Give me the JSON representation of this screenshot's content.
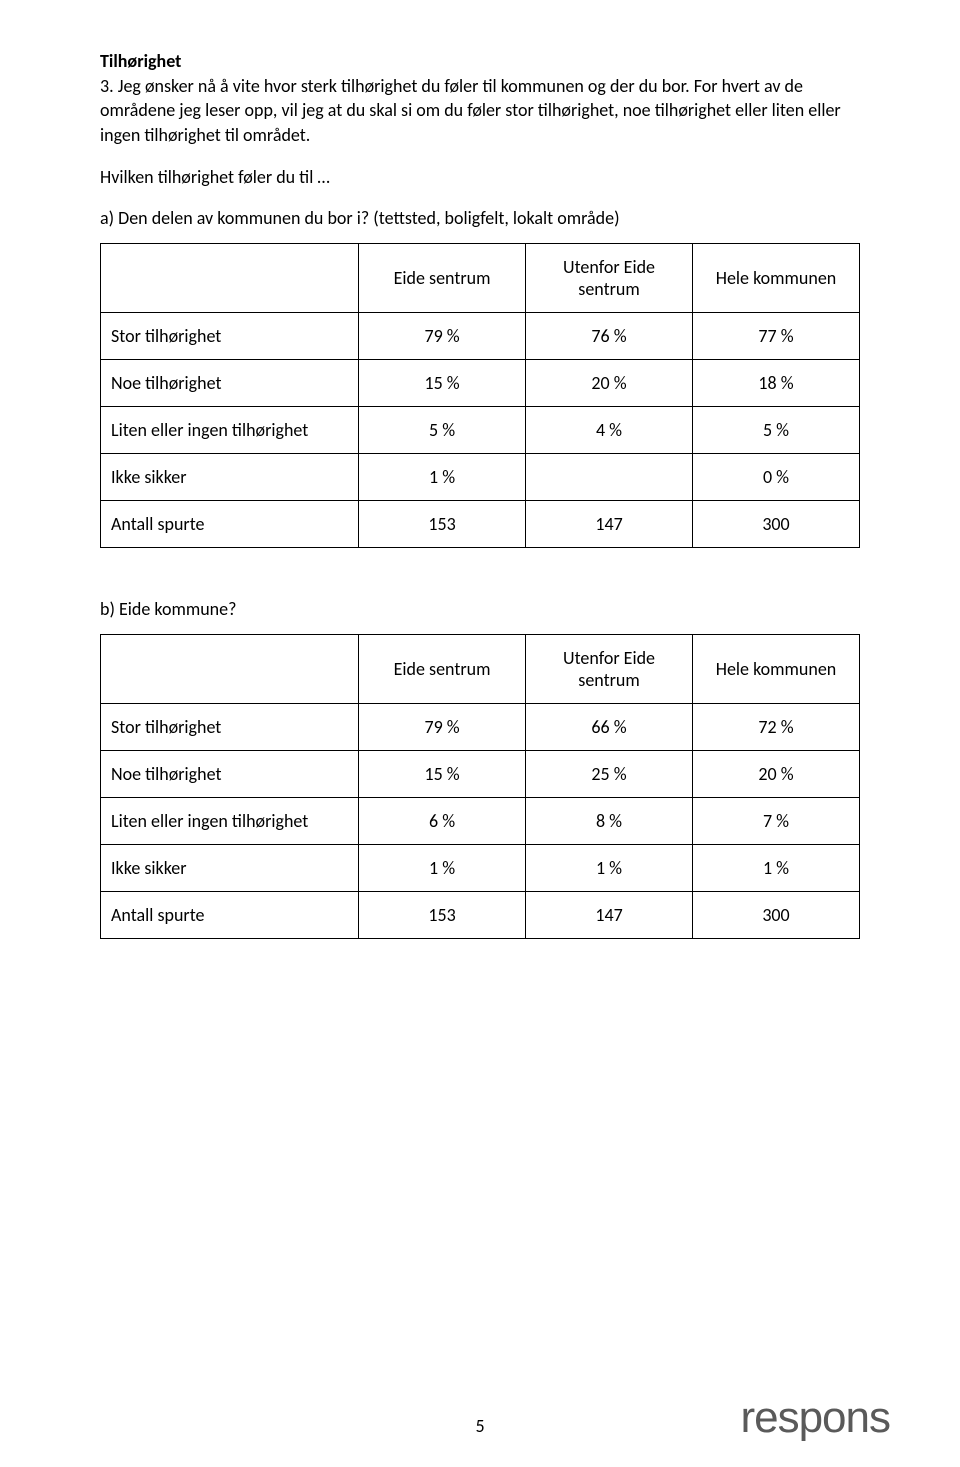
{
  "heading": "Tilhørighet",
  "intro_text": "3. Jeg ønsker nå å vite hvor sterk tilhørighet du føler til kommunen og der du bor. For hvert av de områdene jeg leser opp, vil jeg at du skal si om du føler stor tilhørighet, noe tilhørighet eller liten eller ingen tilhørighet til området.",
  "lead_in": "Hvilken tilhørighet føler du til …",
  "question_a": "a) Den delen av kommunen du bor i? (tettsted, boligfelt, lokalt område)",
  "question_b": "b) Eide kommune?",
  "columns": [
    "Eide sentrum",
    "Utenfor Eide sentrum",
    "Hele kommunen"
  ],
  "row_labels": {
    "stor": "Stor tilhørighet",
    "noe": "Noe tilhørighet",
    "liten": "Liten eller ingen tilhørighet",
    "ikke": "Ikke sikker",
    "antall": "Antall spurte"
  },
  "table_a": {
    "stor": [
      "79 %",
      "76 %",
      "77 %"
    ],
    "noe": [
      "15 %",
      "20 %",
      "18 %"
    ],
    "liten": [
      "5 %",
      "4 %",
      "5 %"
    ],
    "ikke": [
      "1 %",
      "",
      "0 %"
    ],
    "antall": [
      "153",
      "147",
      "300"
    ]
  },
  "table_b": {
    "stor": [
      "79 %",
      "66 %",
      "72 %"
    ],
    "noe": [
      "15 %",
      "25 %",
      "20 %"
    ],
    "liten": [
      "6 %",
      "8 %",
      "7 %"
    ],
    "ikke": [
      "1 %",
      "1 %",
      "1 %"
    ],
    "antall": [
      "153",
      "147",
      "300"
    ]
  },
  "page_number": "5",
  "logo_text": "respons"
}
